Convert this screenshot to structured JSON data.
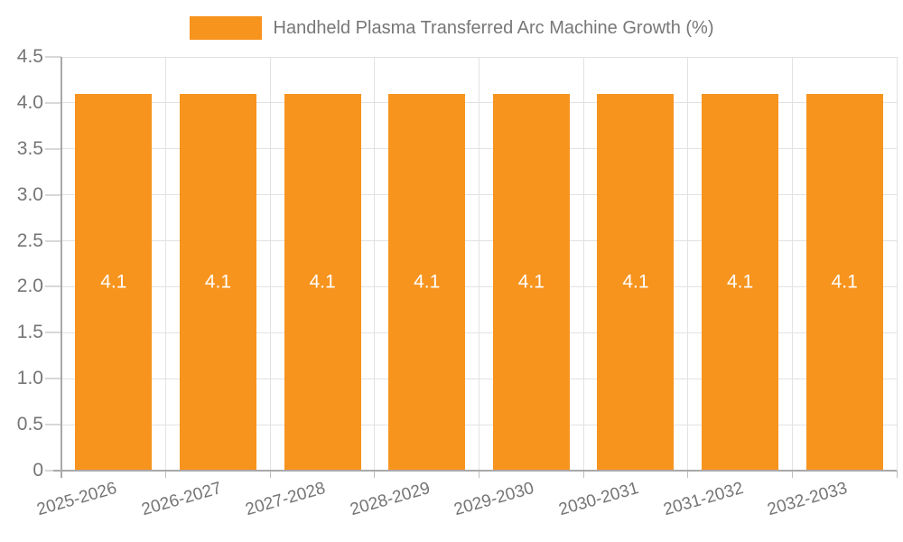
{
  "legend": {
    "swatch_color": "#F7941E",
    "label": "Handheld Plasma Transferred Arc Machine Growth (%)"
  },
  "chart_data": {
    "type": "bar",
    "title": "Handheld Plasma Transferred Arc Machine Growth (%)",
    "categories": [
      "2025-2026",
      "2026-2027",
      "2027-2028",
      "2028-2029",
      "2029-2030",
      "2030-2031",
      "2031-2032",
      "2032-2033"
    ],
    "values": [
      4.1,
      4.1,
      4.1,
      4.1,
      4.1,
      4.1,
      4.1,
      4.1
    ],
    "bar_labels": [
      "4.1",
      "4.1",
      "4.1",
      "4.1",
      "4.1",
      "4.1",
      "4.1",
      "4.1"
    ],
    "xlabel": "",
    "ylabel": "",
    "ylim": [
      0,
      4.5
    ],
    "yticks": [
      {
        "value": 0,
        "label": "0"
      },
      {
        "value": 0.5,
        "label": "0.5"
      },
      {
        "value": 1.0,
        "label": "1.0"
      },
      {
        "value": 1.5,
        "label": "1.5"
      },
      {
        "value": 2.0,
        "label": "2.0"
      },
      {
        "value": 2.5,
        "label": "2.5"
      },
      {
        "value": 3.0,
        "label": "3.0"
      },
      {
        "value": 3.5,
        "label": "3.5"
      },
      {
        "value": 4.0,
        "label": "4.0"
      },
      {
        "value": 4.5,
        "label": "4.5"
      }
    ],
    "grid": true,
    "legend_position": "top",
    "bar_color": "#F7941E",
    "bar_label_color": "#FFFFFF",
    "axis_text_color": "#757575",
    "grid_color": "#E2E2E2",
    "axis_line_color": "#A9A9A9"
  }
}
